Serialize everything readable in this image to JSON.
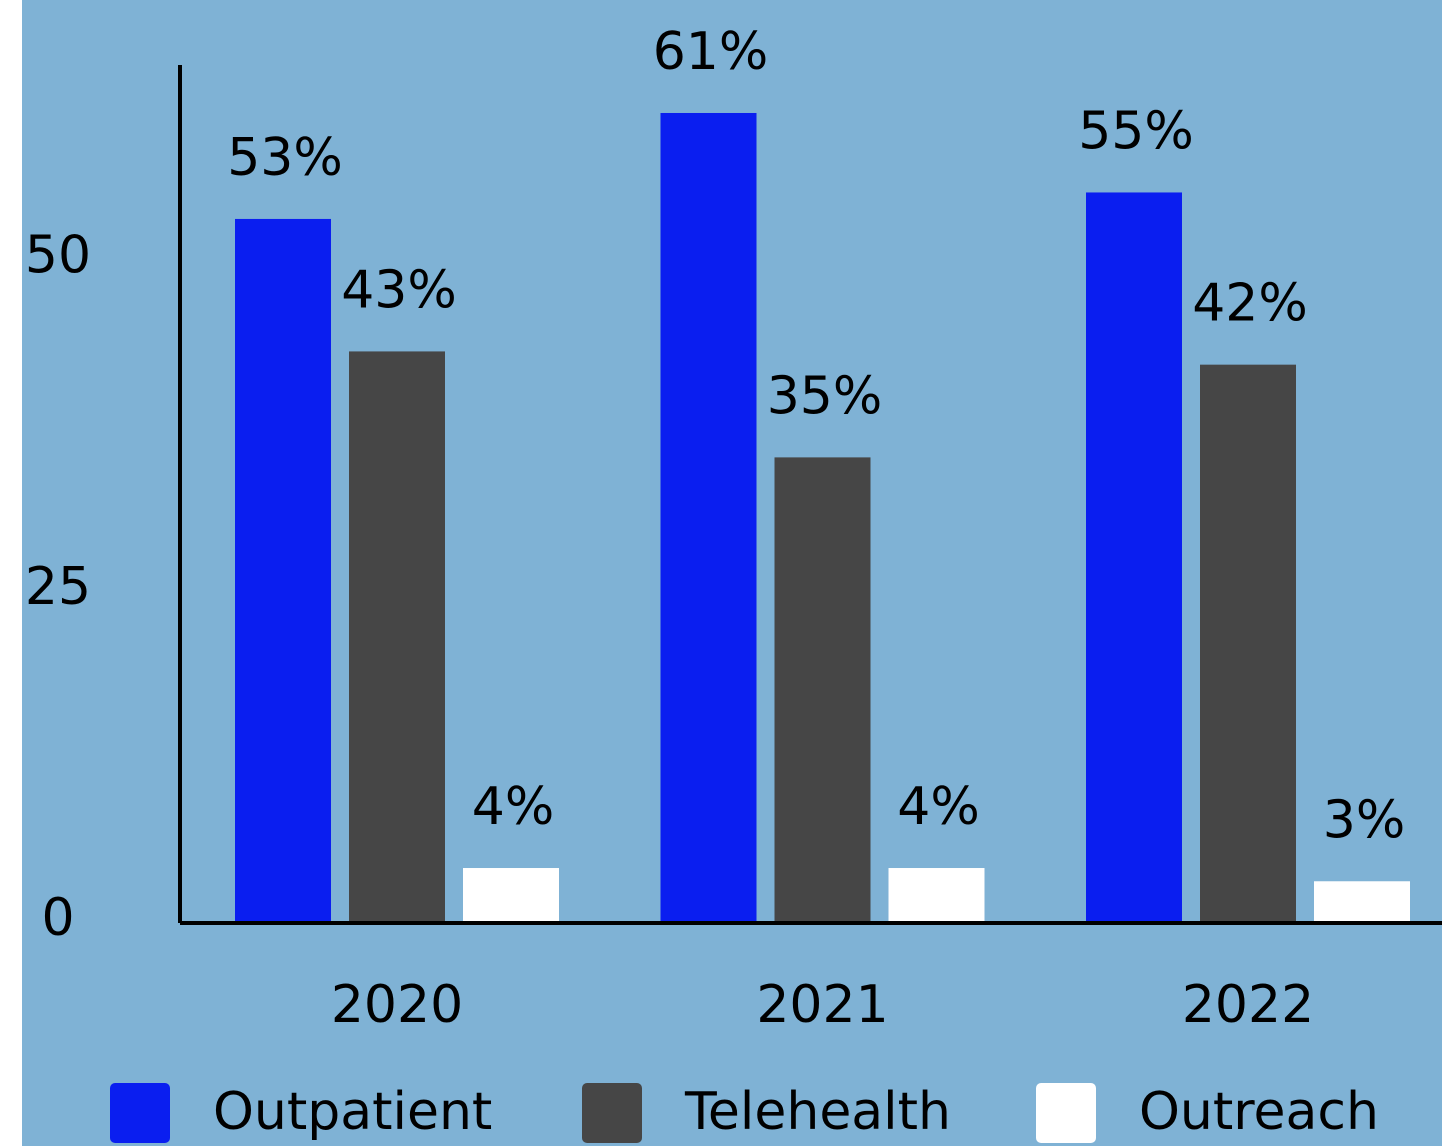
{
  "chart_data": {
    "type": "bar",
    "categories": [
      "2020",
      "2021",
      "2022"
    ],
    "series": [
      {
        "name": "Outpatient",
        "color": "#0a1ef0",
        "values": [
          53,
          61,
          55
        ],
        "value_labels": [
          "53%",
          "61%",
          "55%"
        ]
      },
      {
        "name": "Telehealth",
        "color": "#464646",
        "values": [
          43,
          35,
          42
        ],
        "value_labels": [
          "43%",
          "35%",
          "42%"
        ]
      },
      {
        "name": "Outreach",
        "color": "#ffffff",
        "values": [
          4,
          4,
          3
        ],
        "value_labels": [
          "4%",
          "4%",
          "3%"
        ]
      }
    ],
    "ylim": [
      0,
      65
    ],
    "yticks": [
      0,
      25,
      50
    ],
    "grid": false,
    "legend": "bottom"
  }
}
